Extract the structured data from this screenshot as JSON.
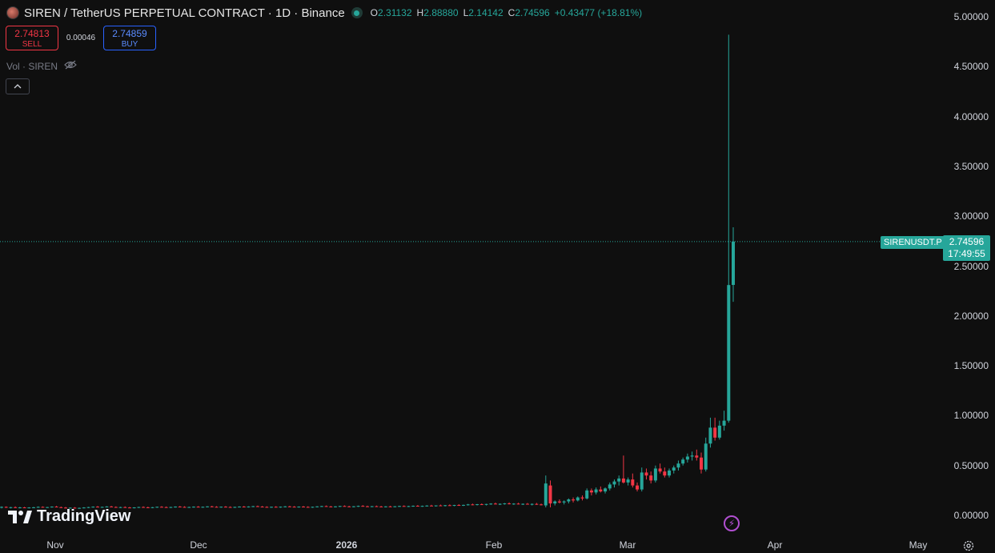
{
  "header": {
    "title": "SIREN / TetherUS PERPETUAL CONTRACT · 1D · Binance",
    "ohlc": {
      "o_label": "O",
      "o": "2.31132",
      "h_label": "H",
      "h": "2.88880",
      "l_label": "L",
      "l": "2.14142",
      "c_label": "C",
      "c": "2.74596",
      "change": "+0.43477 (+18.81%)"
    }
  },
  "trade": {
    "sell_price": "2.74813",
    "sell_label": "SELL",
    "spread": "0.00046",
    "buy_price": "2.74859",
    "buy_label": "BUY"
  },
  "volume_label": "Vol · SIREN",
  "price_marker": {
    "symbol": "SIRENUSDT.P",
    "price": "2.74596",
    "countdown": "17:49:55"
  },
  "branding": "TradingView",
  "colors": {
    "up": "#26a69a",
    "down": "#f23645",
    "background": "#0f0f0f",
    "accent": "#2962ff"
  },
  "chart_data": {
    "type": "candlestick",
    "y_ticks": [
      "5.00000",
      "4.50000",
      "4.00000",
      "3.50000",
      "3.00000",
      "2.50000",
      "2.00000",
      "1.50000",
      "1.00000",
      "0.50000",
      "0.00000"
    ],
    "x_labels": [
      "Nov",
      "Dec",
      "2026",
      "Feb",
      "Mar",
      "Apr",
      "May"
    ],
    "ylim": [
      0,
      5
    ],
    "last_price": 2.74596,
    "candles": [
      {
        "o": 0.08,
        "h": 0.09,
        "l": 0.07,
        "c": 0.085
      },
      {
        "o": 0.085,
        "h": 0.09,
        "l": 0.075,
        "c": 0.08
      },
      {
        "o": 0.08,
        "h": 0.085,
        "l": 0.07,
        "c": 0.082
      },
      {
        "o": 0.082,
        "h": 0.09,
        "l": 0.075,
        "c": 0.078
      },
      {
        "o": 0.078,
        "h": 0.085,
        "l": 0.07,
        "c": 0.08
      },
      {
        "o": 0.08,
        "h": 0.085,
        "l": 0.072,
        "c": 0.076
      },
      {
        "o": 0.076,
        "h": 0.082,
        "l": 0.07,
        "c": 0.079
      },
      {
        "o": 0.079,
        "h": 0.085,
        "l": 0.072,
        "c": 0.081
      },
      {
        "o": 0.081,
        "h": 0.09,
        "l": 0.076,
        "c": 0.085
      },
      {
        "o": 0.085,
        "h": 0.09,
        "l": 0.078,
        "c": 0.08
      },
      {
        "o": 0.08,
        "h": 0.085,
        "l": 0.074,
        "c": 0.083
      },
      {
        "o": 0.083,
        "h": 0.09,
        "l": 0.078,
        "c": 0.088
      },
      {
        "o": 0.088,
        "h": 0.095,
        "l": 0.08,
        "c": 0.082
      },
      {
        "o": 0.082,
        "h": 0.088,
        "l": 0.075,
        "c": 0.078
      },
      {
        "o": 0.078,
        "h": 0.085,
        "l": 0.07,
        "c": 0.074
      },
      {
        "o": 0.074,
        "h": 0.08,
        "l": 0.068,
        "c": 0.077
      },
      {
        "o": 0.077,
        "h": 0.083,
        "l": 0.07,
        "c": 0.072
      },
      {
        "o": 0.072,
        "h": 0.078,
        "l": 0.066,
        "c": 0.075
      },
      {
        "o": 0.075,
        "h": 0.082,
        "l": 0.07,
        "c": 0.079
      },
      {
        "o": 0.079,
        "h": 0.085,
        "l": 0.073,
        "c": 0.083
      },
      {
        "o": 0.083,
        "h": 0.09,
        "l": 0.078,
        "c": 0.087
      },
      {
        "o": 0.087,
        "h": 0.094,
        "l": 0.08,
        "c": 0.082
      },
      {
        "o": 0.082,
        "h": 0.088,
        "l": 0.076,
        "c": 0.085
      },
      {
        "o": 0.085,
        "h": 0.092,
        "l": 0.08,
        "c": 0.089
      },
      {
        "o": 0.089,
        "h": 0.095,
        "l": 0.082,
        "c": 0.084
      },
      {
        "o": 0.084,
        "h": 0.09,
        "l": 0.078,
        "c": 0.08
      },
      {
        "o": 0.08,
        "h": 0.086,
        "l": 0.074,
        "c": 0.083
      },
      {
        "o": 0.083,
        "h": 0.09,
        "l": 0.077,
        "c": 0.079
      },
      {
        "o": 0.079,
        "h": 0.085,
        "l": 0.072,
        "c": 0.076
      },
      {
        "o": 0.076,
        "h": 0.082,
        "l": 0.07,
        "c": 0.08
      },
      {
        "o": 0.08,
        "h": 0.086,
        "l": 0.074,
        "c": 0.084
      },
      {
        "o": 0.084,
        "h": 0.09,
        "l": 0.078,
        "c": 0.081
      },
      {
        "o": 0.081,
        "h": 0.087,
        "l": 0.075,
        "c": 0.078
      },
      {
        "o": 0.078,
        "h": 0.084,
        "l": 0.072,
        "c": 0.082
      },
      {
        "o": 0.082,
        "h": 0.088,
        "l": 0.076,
        "c": 0.086
      },
      {
        "o": 0.086,
        "h": 0.092,
        "l": 0.08,
        "c": 0.083
      },
      {
        "o": 0.083,
        "h": 0.089,
        "l": 0.077,
        "c": 0.08
      },
      {
        "o": 0.08,
        "h": 0.086,
        "l": 0.074,
        "c": 0.084
      },
      {
        "o": 0.084,
        "h": 0.09,
        "l": 0.078,
        "c": 0.088
      },
      {
        "o": 0.088,
        "h": 0.094,
        "l": 0.082,
        "c": 0.085
      },
      {
        "o": 0.085,
        "h": 0.091,
        "l": 0.079,
        "c": 0.081
      },
      {
        "o": 0.081,
        "h": 0.087,
        "l": 0.075,
        "c": 0.084
      },
      {
        "o": 0.084,
        "h": 0.09,
        "l": 0.078,
        "c": 0.087
      },
      {
        "o": 0.087,
        "h": 0.093,
        "l": 0.081,
        "c": 0.083
      },
      {
        "o": 0.083,
        "h": 0.089,
        "l": 0.077,
        "c": 0.086
      },
      {
        "o": 0.086,
        "h": 0.092,
        "l": 0.08,
        "c": 0.09
      },
      {
        "o": 0.09,
        "h": 0.096,
        "l": 0.083,
        "c": 0.086
      },
      {
        "o": 0.086,
        "h": 0.092,
        "l": 0.08,
        "c": 0.083
      },
      {
        "o": 0.083,
        "h": 0.089,
        "l": 0.077,
        "c": 0.087
      },
      {
        "o": 0.087,
        "h": 0.093,
        "l": 0.081,
        "c": 0.084
      },
      {
        "o": 0.084,
        "h": 0.09,
        "l": 0.078,
        "c": 0.081
      },
      {
        "o": 0.081,
        "h": 0.087,
        "l": 0.075,
        "c": 0.085
      },
      {
        "o": 0.085,
        "h": 0.091,
        "l": 0.079,
        "c": 0.088
      },
      {
        "o": 0.088,
        "h": 0.094,
        "l": 0.082,
        "c": 0.085
      },
      {
        "o": 0.085,
        "h": 0.091,
        "l": 0.079,
        "c": 0.089
      },
      {
        "o": 0.089,
        "h": 0.095,
        "l": 0.083,
        "c": 0.092
      },
      {
        "o": 0.092,
        "h": 0.098,
        "l": 0.085,
        "c": 0.088
      },
      {
        "o": 0.088,
        "h": 0.094,
        "l": 0.082,
        "c": 0.085
      },
      {
        "o": 0.085,
        "h": 0.091,
        "l": 0.079,
        "c": 0.082
      },
      {
        "o": 0.082,
        "h": 0.088,
        "l": 0.076,
        "c": 0.086
      },
      {
        "o": 0.086,
        "h": 0.092,
        "l": 0.08,
        "c": 0.083
      },
      {
        "o": 0.083,
        "h": 0.089,
        "l": 0.077,
        "c": 0.087
      },
      {
        "o": 0.087,
        "h": 0.093,
        "l": 0.081,
        "c": 0.09
      },
      {
        "o": 0.09,
        "h": 0.096,
        "l": 0.084,
        "c": 0.087
      },
      {
        "o": 0.087,
        "h": 0.093,
        "l": 0.081,
        "c": 0.084
      },
      {
        "o": 0.084,
        "h": 0.09,
        "l": 0.078,
        "c": 0.088
      },
      {
        "o": 0.088,
        "h": 0.094,
        "l": 0.082,
        "c": 0.085
      },
      {
        "o": 0.085,
        "h": 0.091,
        "l": 0.079,
        "c": 0.082
      },
      {
        "o": 0.082,
        "h": 0.088,
        "l": 0.076,
        "c": 0.086
      },
      {
        "o": 0.086,
        "h": 0.092,
        "l": 0.08,
        "c": 0.09
      },
      {
        "o": 0.09,
        "h": 0.096,
        "l": 0.084,
        "c": 0.093
      },
      {
        "o": 0.093,
        "h": 0.099,
        "l": 0.087,
        "c": 0.089
      },
      {
        "o": 0.089,
        "h": 0.095,
        "l": 0.083,
        "c": 0.086
      },
      {
        "o": 0.086,
        "h": 0.092,
        "l": 0.08,
        "c": 0.09
      },
      {
        "o": 0.09,
        "h": 0.096,
        "l": 0.084,
        "c": 0.094
      },
      {
        "o": 0.094,
        "h": 0.1,
        "l": 0.088,
        "c": 0.09
      },
      {
        "o": 0.09,
        "h": 0.096,
        "l": 0.084,
        "c": 0.087
      },
      {
        "o": 0.087,
        "h": 0.093,
        "l": 0.081,
        "c": 0.091
      },
      {
        "o": 0.091,
        "h": 0.098,
        "l": 0.085,
        "c": 0.095
      },
      {
        "o": 0.095,
        "h": 0.102,
        "l": 0.088,
        "c": 0.091
      },
      {
        "o": 0.091,
        "h": 0.097,
        "l": 0.085,
        "c": 0.088
      },
      {
        "o": 0.088,
        "h": 0.094,
        "l": 0.082,
        "c": 0.092
      },
      {
        "o": 0.092,
        "h": 0.098,
        "l": 0.086,
        "c": 0.089
      },
      {
        "o": 0.089,
        "h": 0.095,
        "l": 0.083,
        "c": 0.086
      },
      {
        "o": 0.086,
        "h": 0.092,
        "l": 0.08,
        "c": 0.09
      },
      {
        "o": 0.09,
        "h": 0.096,
        "l": 0.084,
        "c": 0.087
      },
      {
        "o": 0.087,
        "h": 0.093,
        "l": 0.081,
        "c": 0.091
      },
      {
        "o": 0.091,
        "h": 0.097,
        "l": 0.085,
        "c": 0.094
      },
      {
        "o": 0.094,
        "h": 0.1,
        "l": 0.088,
        "c": 0.09
      },
      {
        "o": 0.09,
        "h": 0.096,
        "l": 0.084,
        "c": 0.093
      },
      {
        "o": 0.093,
        "h": 0.099,
        "l": 0.087,
        "c": 0.096
      },
      {
        "o": 0.096,
        "h": 0.103,
        "l": 0.09,
        "c": 0.092
      },
      {
        "o": 0.092,
        "h": 0.098,
        "l": 0.086,
        "c": 0.095
      },
      {
        "o": 0.095,
        "h": 0.102,
        "l": 0.089,
        "c": 0.098
      },
      {
        "o": 0.098,
        "h": 0.106,
        "l": 0.092,
        "c": 0.094
      },
      {
        "o": 0.094,
        "h": 0.1,
        "l": 0.088,
        "c": 0.1
      },
      {
        "o": 0.1,
        "h": 0.108,
        "l": 0.094,
        "c": 0.096
      },
      {
        "o": 0.096,
        "h": 0.104,
        "l": 0.09,
        "c": 0.102
      },
      {
        "o": 0.102,
        "h": 0.11,
        "l": 0.096,
        "c": 0.098
      },
      {
        "o": 0.098,
        "h": 0.106,
        "l": 0.092,
        "c": 0.104
      },
      {
        "o": 0.104,
        "h": 0.112,
        "l": 0.098,
        "c": 0.1
      },
      {
        "o": 0.1,
        "h": 0.108,
        "l": 0.094,
        "c": 0.105
      },
      {
        "o": 0.105,
        "h": 0.115,
        "l": 0.099,
        "c": 0.11
      },
      {
        "o": 0.11,
        "h": 0.118,
        "l": 0.102,
        "c": 0.106
      },
      {
        "o": 0.106,
        "h": 0.114,
        "l": 0.1,
        "c": 0.112
      },
      {
        "o": 0.112,
        "h": 0.12,
        "l": 0.104,
        "c": 0.108
      },
      {
        "o": 0.108,
        "h": 0.116,
        "l": 0.1,
        "c": 0.114
      },
      {
        "o": 0.114,
        "h": 0.122,
        "l": 0.106,
        "c": 0.118
      },
      {
        "o": 0.118,
        "h": 0.128,
        "l": 0.11,
        "c": 0.112
      },
      {
        "o": 0.112,
        "h": 0.12,
        "l": 0.104,
        "c": 0.116
      },
      {
        "o": 0.116,
        "h": 0.124,
        "l": 0.108,
        "c": 0.12
      },
      {
        "o": 0.12,
        "h": 0.13,
        "l": 0.11,
        "c": 0.114
      },
      {
        "o": 0.114,
        "h": 0.122,
        "l": 0.106,
        "c": 0.118
      },
      {
        "o": 0.118,
        "h": 0.126,
        "l": 0.11,
        "c": 0.112
      },
      {
        "o": 0.112,
        "h": 0.12,
        "l": 0.104,
        "c": 0.116
      },
      {
        "o": 0.116,
        "h": 0.124,
        "l": 0.108,
        "c": 0.11
      },
      {
        "o": 0.11,
        "h": 0.12,
        "l": 0.1,
        "c": 0.115
      },
      {
        "o": 0.115,
        "h": 0.125,
        "l": 0.105,
        "c": 0.11
      },
      {
        "o": 0.11,
        "h": 0.118,
        "l": 0.1,
        "c": 0.105
      },
      {
        "o": 0.1,
        "h": 0.4,
        "l": 0.08,
        "c": 0.32
      },
      {
        "o": 0.3,
        "h": 0.35,
        "l": 0.08,
        "c": 0.12
      },
      {
        "o": 0.12,
        "h": 0.15,
        "l": 0.1,
        "c": 0.14
      },
      {
        "o": 0.14,
        "h": 0.16,
        "l": 0.12,
        "c": 0.13
      },
      {
        "o": 0.13,
        "h": 0.15,
        "l": 0.11,
        "c": 0.14
      },
      {
        "o": 0.14,
        "h": 0.17,
        "l": 0.12,
        "c": 0.16
      },
      {
        "o": 0.16,
        "h": 0.18,
        "l": 0.13,
        "c": 0.15
      },
      {
        "o": 0.15,
        "h": 0.19,
        "l": 0.14,
        "c": 0.18
      },
      {
        "o": 0.18,
        "h": 0.2,
        "l": 0.15,
        "c": 0.17
      },
      {
        "o": 0.17,
        "h": 0.27,
        "l": 0.16,
        "c": 0.25
      },
      {
        "o": 0.25,
        "h": 0.27,
        "l": 0.2,
        "c": 0.23
      },
      {
        "o": 0.23,
        "h": 0.28,
        "l": 0.21,
        "c": 0.26
      },
      {
        "o": 0.26,
        "h": 0.29,
        "l": 0.23,
        "c": 0.24
      },
      {
        "o": 0.24,
        "h": 0.28,
        "l": 0.22,
        "c": 0.27
      },
      {
        "o": 0.27,
        "h": 0.33,
        "l": 0.25,
        "c": 0.31
      },
      {
        "o": 0.31,
        "h": 0.36,
        "l": 0.28,
        "c": 0.34
      },
      {
        "o": 0.34,
        "h": 0.4,
        "l": 0.3,
        "c": 0.37
      },
      {
        "o": 0.37,
        "h": 0.6,
        "l": 0.32,
        "c": 0.33
      },
      {
        "o": 0.33,
        "h": 0.38,
        "l": 0.3,
        "c": 0.36
      },
      {
        "o": 0.36,
        "h": 0.42,
        "l": 0.28,
        "c": 0.3
      },
      {
        "o": 0.3,
        "h": 0.33,
        "l": 0.24,
        "c": 0.26
      },
      {
        "o": 0.26,
        "h": 0.48,
        "l": 0.24,
        "c": 0.43
      },
      {
        "o": 0.43,
        "h": 0.47,
        "l": 0.36,
        "c": 0.4
      },
      {
        "o": 0.4,
        "h": 0.44,
        "l": 0.32,
        "c": 0.35
      },
      {
        "o": 0.35,
        "h": 0.5,
        "l": 0.33,
        "c": 0.47
      },
      {
        "o": 0.47,
        "h": 0.52,
        "l": 0.42,
        "c": 0.44
      },
      {
        "o": 0.44,
        "h": 0.48,
        "l": 0.38,
        "c": 0.4
      },
      {
        "o": 0.4,
        "h": 0.47,
        "l": 0.38,
        "c": 0.45
      },
      {
        "o": 0.45,
        "h": 0.5,
        "l": 0.42,
        "c": 0.48
      },
      {
        "o": 0.48,
        "h": 0.55,
        "l": 0.45,
        "c": 0.52
      },
      {
        "o": 0.52,
        "h": 0.58,
        "l": 0.5,
        "c": 0.56
      },
      {
        "o": 0.56,
        "h": 0.62,
        "l": 0.53,
        "c": 0.59
      },
      {
        "o": 0.59,
        "h": 0.64,
        "l": 0.55,
        "c": 0.6
      },
      {
        "o": 0.6,
        "h": 0.66,
        "l": 0.55,
        "c": 0.58
      },
      {
        "o": 0.58,
        "h": 0.63,
        "l": 0.42,
        "c": 0.46
      },
      {
        "o": 0.46,
        "h": 0.78,
        "l": 0.44,
        "c": 0.72
      },
      {
        "o": 0.72,
        "h": 0.98,
        "l": 0.68,
        "c": 0.88
      },
      {
        "o": 0.88,
        "h": 0.98,
        "l": 0.75,
        "c": 0.78
      },
      {
        "o": 0.78,
        "h": 0.95,
        "l": 0.76,
        "c": 0.9
      },
      {
        "o": 0.9,
        "h": 1.05,
        "l": 0.85,
        "c": 0.95
      },
      {
        "o": 0.95,
        "h": 4.82,
        "l": 0.93,
        "c": 2.31
      },
      {
        "o": 2.31132,
        "h": 2.8888,
        "l": 2.14142,
        "c": 2.74596
      }
    ]
  }
}
